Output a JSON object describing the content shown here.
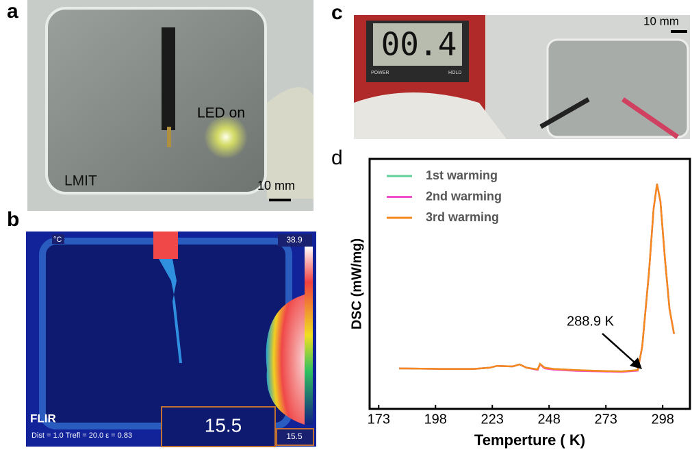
{
  "panels": {
    "a": {
      "label": "a",
      "led": "LED on",
      "material": "LMIT",
      "scale": "10 mm"
    },
    "b": {
      "label": "b",
      "unit": "°C",
      "max": "38.9",
      "brand": "FLIR",
      "params": "Dist = 1.0  Trefl = 20.0  ε = 0.83",
      "spot": "15.5",
      "min": "15.5"
    },
    "c": {
      "label": "c",
      "display": "00.4",
      "power": "POWER",
      "hold": "HOLD",
      "scale": "10 mm"
    },
    "d": {
      "label": "d"
    }
  },
  "chart_data": {
    "type": "line",
    "xlabel": "Temperture ( K)",
    "ylabel": "DSC (mW/mg)",
    "x": [
      182,
      200,
      215,
      222,
      225,
      232,
      235,
      238,
      243,
      244,
      246,
      250,
      260,
      270,
      280,
      287,
      289,
      292,
      294,
      295.5,
      297,
      299,
      301,
      303
    ],
    "series": [
      {
        "name": "1st warming",
        "color": "#5fcf9a",
        "values": [
          1.62,
          1.6,
          1.6,
          1.65,
          1.72,
          1.7,
          1.78,
          1.65,
          1.58,
          1.8,
          1.65,
          1.6,
          1.55,
          1.52,
          1.5,
          1.55,
          2.5,
          5.5,
          8.0,
          9.0,
          8.3,
          6.0,
          4.0,
          3.0
        ]
      },
      {
        "name": "2nd warming",
        "color": "#f050c8",
        "values": [
          1.62,
          1.6,
          1.6,
          1.65,
          1.72,
          1.7,
          1.78,
          1.65,
          1.56,
          1.78,
          1.62,
          1.57,
          1.52,
          1.5,
          1.48,
          1.53,
          2.5,
          5.5,
          8.0,
          9.0,
          8.3,
          6.0,
          4.0,
          3.0
        ]
      },
      {
        "name": "3rd warming",
        "color": "#f5891e",
        "values": [
          1.62,
          1.6,
          1.6,
          1.65,
          1.72,
          1.7,
          1.78,
          1.65,
          1.58,
          1.8,
          1.65,
          1.6,
          1.55,
          1.52,
          1.5,
          1.55,
          2.5,
          5.5,
          8.0,
          9.0,
          8.3,
          6.0,
          4.0,
          3.0
        ]
      }
    ],
    "annotation": "288.9 K",
    "xlim": [
      169,
      310
    ],
    "ylim": [
      0,
      10
    ],
    "xticks": [
      173,
      198,
      223,
      248,
      273,
      298
    ],
    "legend": "upper left"
  }
}
